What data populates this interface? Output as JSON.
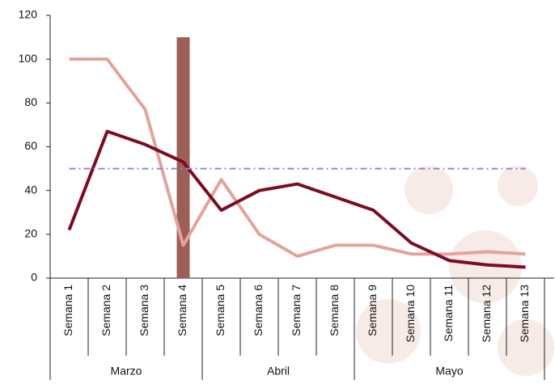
{
  "chart_data": {
    "type": "line",
    "categories": [
      "Semana 1",
      "Semana 2",
      "Semana 3",
      "Semana 4",
      "Semana 5",
      "Semana 6",
      "Semana 7",
      "Semana 8",
      "Semana 9",
      "Semana 10",
      "Semana 11",
      "Semana 12",
      "Semana 13"
    ],
    "groups": [
      {
        "label": "Marzo",
        "span": 4
      },
      {
        "label": "Abril",
        "span": 4
      },
      {
        "label": "Mayo",
        "span": 5
      }
    ],
    "series": [
      {
        "type": "bar",
        "color": "#9b5f57",
        "values": [
          null,
          null,
          null,
          110,
          null,
          null,
          null,
          null,
          null,
          null,
          null,
          null,
          null
        ]
      },
      {
        "type": "line",
        "color": "#e3a39c",
        "values": [
          100,
          100,
          77,
          15,
          45,
          20,
          10,
          15,
          15,
          11,
          11,
          12,
          11
        ]
      },
      {
        "type": "line",
        "color": "#7a0c24",
        "values": [
          22,
          67,
          61,
          53,
          31,
          40,
          43,
          37,
          31,
          16,
          8,
          6,
          5
        ]
      }
    ],
    "reference_line": {
      "value": 50,
      "color": "#8e8ccc"
    },
    "ylim": [
      0,
      120
    ],
    "yticks": [
      0,
      20,
      40,
      60,
      80,
      100,
      120
    ]
  }
}
